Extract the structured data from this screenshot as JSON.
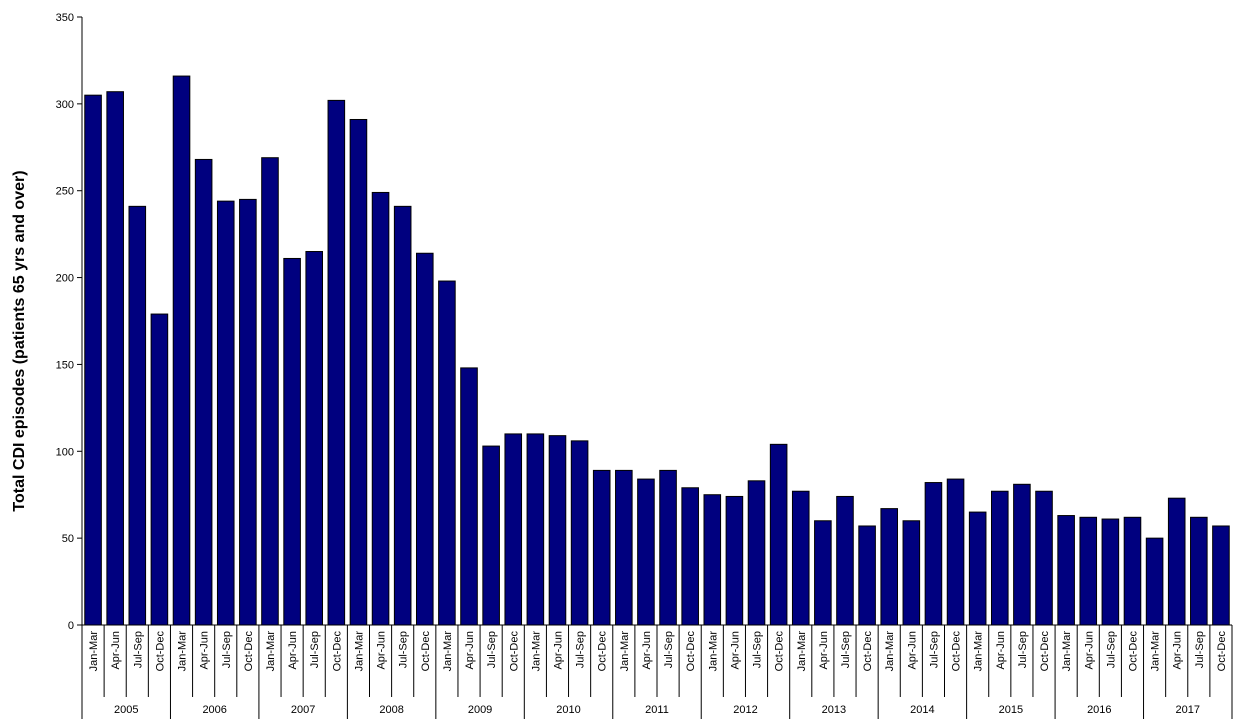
{
  "chart_data": {
    "type": "bar",
    "title": "",
    "xlabel": "",
    "ylabel": "Total CDI episodes (patients 65 yrs and over)",
    "ylim": [
      0,
      350
    ],
    "yticks": [
      0,
      50,
      100,
      150,
      200,
      250,
      300,
      350
    ],
    "grid": false,
    "legend": "none",
    "bar_color": "#00007f",
    "quarters": [
      "Jan-Mar",
      "Apr-Jun",
      "Jul-Sep",
      "Oct-Dec"
    ],
    "years": [
      "2005",
      "2006",
      "2007",
      "2008",
      "2009",
      "2010",
      "2011",
      "2012",
      "2013",
      "2014",
      "2015",
      "2016",
      "2017"
    ],
    "values": [
      305,
      307,
      241,
      179,
      316,
      268,
      244,
      245,
      269,
      211,
      215,
      302,
      291,
      249,
      241,
      214,
      198,
      148,
      103,
      110,
      110,
      109,
      106,
      89,
      89,
      84,
      89,
      79,
      75,
      74,
      83,
      104,
      77,
      60,
      74,
      57,
      67,
      60,
      82,
      84,
      65,
      77,
      81,
      77,
      63,
      62,
      61,
      62,
      50,
      73,
      62,
      57
    ]
  }
}
